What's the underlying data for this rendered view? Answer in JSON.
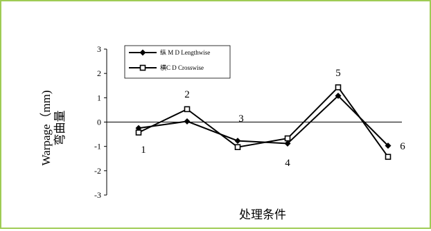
{
  "chart_data": {
    "type": "line",
    "x": [
      1,
      2,
      3,
      4,
      5,
      6
    ],
    "series": [
      {
        "name": "纵 M D Lengthwise",
        "marker": "filled-diamond",
        "color": "#000000",
        "values": [
          -0.25,
          0.03,
          -0.77,
          -0.88,
          1.08,
          -0.97
        ]
      },
      {
        "name": "横C D Crosswise",
        "marker": "open-square",
        "color": "#000000",
        "values": [
          -0.43,
          0.53,
          -1.03,
          -0.67,
          1.43,
          -1.43
        ]
      }
    ],
    "point_labels": [
      "1",
      "2",
      "3",
      "4",
      "5",
      "6"
    ],
    "ylim": [
      -3,
      3
    ],
    "yticks": [
      "3",
      "2",
      "1",
      "0",
      "-1",
      "-2",
      "-3"
    ],
    "ylabel_line1": "Warpage（mm)",
    "ylabel_line2": "弯曲量",
    "xlabel": "处理条件",
    "legend_position": "top-left",
    "grid": false,
    "frame_color": "#9fcc55"
  }
}
